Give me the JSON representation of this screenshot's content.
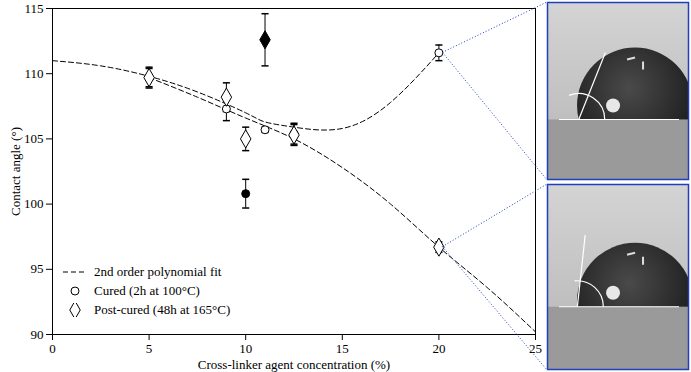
{
  "chart_data": {
    "type": "scatter",
    "xlabel": "Cross-linker agent concentration (%)",
    "ylabel": "Contact angle (°)",
    "xlim": [
      0,
      25
    ],
    "ylim": [
      90,
      115
    ],
    "xticks": [
      0,
      5,
      10,
      15,
      20,
      25
    ],
    "yticks": [
      90,
      95,
      100,
      105,
      110,
      115
    ],
    "grid": false,
    "legend": "lower left",
    "series": [
      {
        "name": "2nd order polynomial fit",
        "type": "line",
        "line_style": "dashed",
        "color": "#000000",
        "x": [
          0,
          2.5,
          5,
          7.5,
          10,
          11,
          12.5,
          15,
          17.5,
          20
        ],
        "values": [
          111.0,
          110.6,
          109.8,
          108.6,
          107.0,
          106.3,
          105.9,
          105.8,
          107.8,
          111.6
        ]
      },
      {
        "name": "2nd order polynomial fit",
        "type": "line",
        "line_style": "dashed",
        "color": "#000000",
        "x": [
          5,
          7.5,
          10,
          12.5,
          15,
          17.5,
          20,
          22.5,
          25
        ],
        "values": [
          109.7,
          108.2,
          106.6,
          105.0,
          102.8,
          100.0,
          96.7,
          93.6,
          90.2
        ]
      },
      {
        "name": "Cured (2h at 100°C)",
        "type": "scatter",
        "marker": "open_circle",
        "color": "#000000",
        "x": [
          5,
          9,
          11,
          12.5,
          20
        ],
        "values": [
          109.7,
          107.3,
          105.7,
          105.4,
          111.6
        ],
        "errors": [
          0.7,
          0.9,
          0.2,
          0.8,
          0.6
        ]
      },
      {
        "name": "Post-cured (48h at 165°C)",
        "type": "scatter",
        "marker": "open_diamond",
        "color": "#000000",
        "x": [
          5,
          9,
          10,
          12.5,
          20
        ],
        "values": [
          109.7,
          108.2,
          105.0,
          105.3,
          96.7
        ],
        "errors": [
          0.8,
          1.1,
          0.9,
          0.8,
          0.4
        ]
      },
      {
        "type": "scatter",
        "marker": "filled_circle",
        "color": "#000000",
        "x": [
          10
        ],
        "values": [
          100.8
        ],
        "errors": [
          1.1
        ]
      },
      {
        "type": "scatter",
        "marker": "filled_diamond",
        "color": "#000000",
        "x": [
          11
        ],
        "values": [
          112.6
        ],
        "errors": [
          2.0
        ]
      }
    ]
  }
}
